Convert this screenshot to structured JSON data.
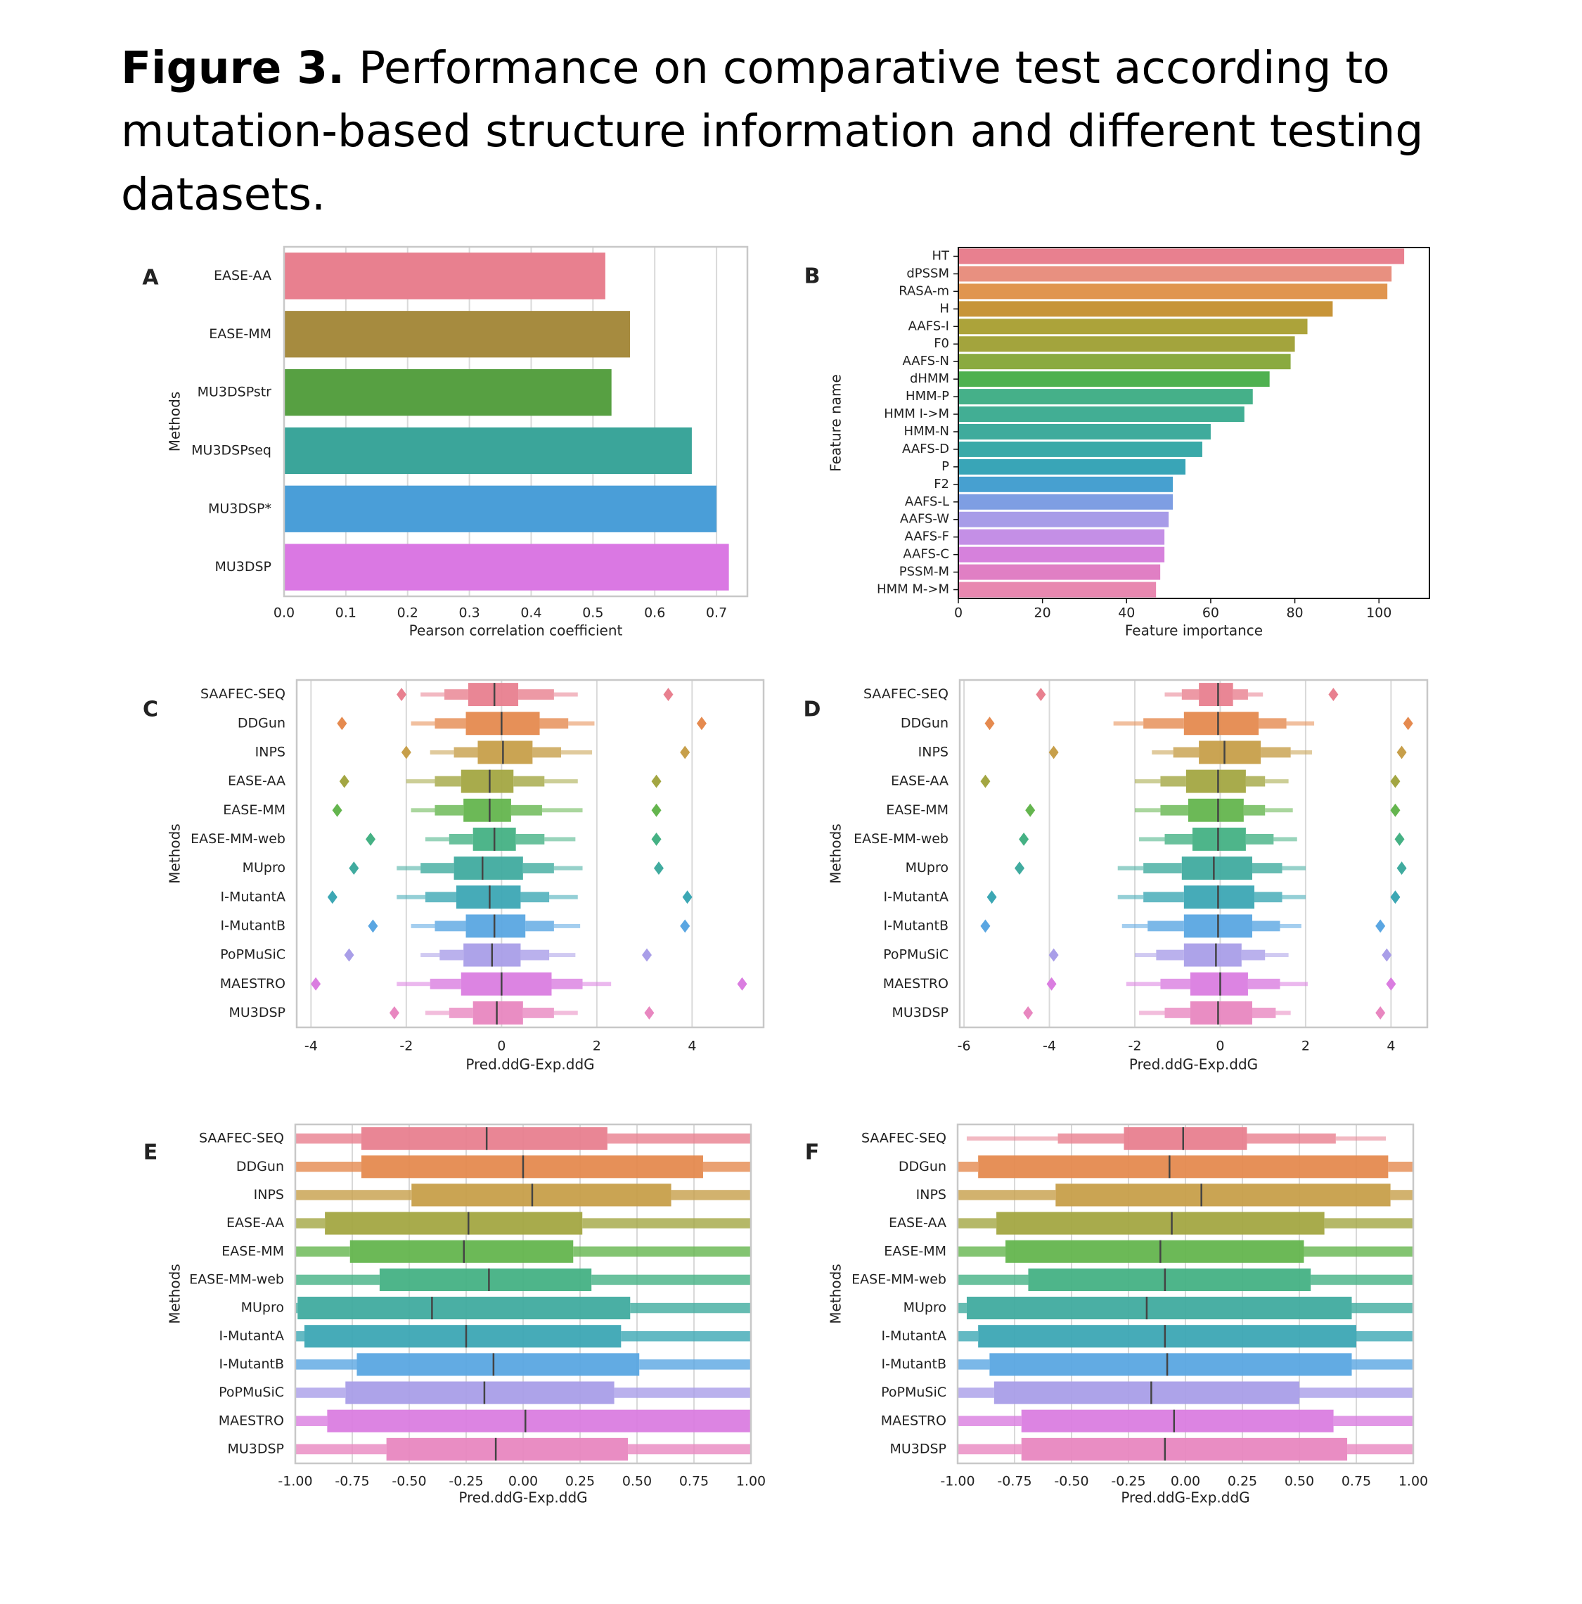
{
  "figure": {
    "label": "Figure 3.",
    "title": "Performance on comparative test according to mutation-based structure information and different testing datasets."
  },
  "chart_data": [
    {
      "panel": "A",
      "type": "bar",
      "orientation": "horizontal",
      "categories": [
        "EASE-AA",
        "EASE-MM",
        "MU3DSPstr",
        "MU3DSPseq",
        "MU3DSP*",
        "MU3DSP"
      ],
      "values": [
        0.52,
        0.56,
        0.53,
        0.66,
        0.7,
        0.72
      ],
      "colors": [
        "#e8808f",
        "#a68b3f",
        "#57a042",
        "#3ba59a",
        "#4a9ed8",
        "#da78e3"
      ],
      "xlabel": "Pearson correlation coefficient",
      "ylabel": "Methods",
      "xlim": [
        0,
        0.75
      ],
      "xticks": [
        "0.0",
        "0.1",
        "0.2",
        "0.3",
        "0.4",
        "0.5",
        "0.6",
        "0.7"
      ],
      "grid": true
    },
    {
      "panel": "B",
      "type": "bar",
      "orientation": "horizontal",
      "categories": [
        "HT",
        "dPSSM",
        "RASA-m",
        "H",
        "AAFS-I",
        "F0",
        "AAFS-N",
        "dHMM",
        "HMM-P",
        "HMM I->M",
        "HMM-N",
        "AAFS-D",
        "P",
        "F2",
        "AAFS-L",
        "AAFS-W",
        "AAFS-F",
        "AAFS-C",
        "PSSM-M",
        "HMM M->M"
      ],
      "values": [
        106,
        103,
        102,
        89,
        83,
        80,
        79,
        74,
        70,
        68,
        60,
        58,
        54,
        51,
        51,
        50,
        49,
        49,
        48,
        47
      ],
      "colors": [
        "#e8808f",
        "#e89080",
        "#e0954f",
        "#c79438",
        "#aca33a",
        "#a3a43d",
        "#8aaa40",
        "#4fb150",
        "#45b089",
        "#42ae94",
        "#3fab9c",
        "#3aa9a8",
        "#39a5b7",
        "#47a0d0",
        "#7e9ee3",
        "#a89ce8",
        "#c48fe6",
        "#d681dc",
        "#e07fc4",
        "#e888b0"
      ],
      "xlabel": "Feature importance",
      "ylabel": "Feature name",
      "xlim": [
        0,
        112
      ],
      "xticks": [
        "0",
        "20",
        "40",
        "60",
        "80",
        "100"
      ],
      "grid": false
    },
    {
      "panel": "C",
      "type": "boxen",
      "orientation": "horizontal",
      "categories": [
        "SAAFEC-SEQ",
        "DDGun",
        "INPS",
        "EASE-AA",
        "EASE-MM",
        "EASE-MM-web",
        "MUpro",
        "I-MutantA",
        "I-MutantB",
        "PoPMuSiC",
        "MAESTRO",
        "MU3DSP"
      ],
      "colors": [
        "#e8808f",
        "#e58a4f",
        "#c79f4a",
        "#a3a642",
        "#64b54e",
        "#45b184",
        "#40ab9f",
        "#3ca7b4",
        "#5aa6e2",
        "#a99ee8",
        "#da7de0",
        "#e887c0"
      ],
      "medians": [
        -0.15,
        0.0,
        0.03,
        -0.25,
        -0.25,
        -0.15,
        -0.4,
        -0.25,
        -0.15,
        -0.2,
        0.0,
        -0.1
      ],
      "q1": [
        -0.7,
        -0.75,
        -0.5,
        -0.85,
        -0.8,
        -0.6,
        -1.0,
        -0.95,
        -0.75,
        -0.8,
        -0.85,
        -0.6
      ],
      "q3": [
        0.35,
        0.8,
        0.65,
        0.25,
        0.2,
        0.3,
        0.45,
        0.4,
        0.5,
        0.4,
        1.05,
        0.45
      ],
      "inner_lo": [
        -1.2,
        -1.4,
        -1.0,
        -1.4,
        -1.4,
        -1.1,
        -1.7,
        -1.6,
        -1.4,
        -1.3,
        -1.5,
        -1.1
      ],
      "inner_hi": [
        1.1,
        1.4,
        1.25,
        0.9,
        0.85,
        0.9,
        1.1,
        1.0,
        1.1,
        1.0,
        1.7,
        1.1
      ],
      "outer_lo": [
        -1.7,
        -1.9,
        -1.5,
        -2.0,
        -1.9,
        -1.6,
        -2.2,
        -2.2,
        -1.9,
        -1.7,
        -2.2,
        -1.6
      ],
      "outer_hi": [
        1.6,
        1.95,
        1.9,
        1.6,
        1.7,
        1.55,
        1.7,
        1.6,
        1.65,
        1.55,
        2.3,
        1.6
      ],
      "fliers_lo": [
        -2.1,
        -3.35,
        -2.0,
        -3.3,
        -3.45,
        -2.75,
        -3.1,
        -3.55,
        -2.7,
        -3.2,
        -3.9,
        -2.25
      ],
      "fliers_hi": [
        3.5,
        4.2,
        3.85,
        3.25,
        3.25,
        3.25,
        3.3,
        3.9,
        3.85,
        3.05,
        5.05,
        3.1
      ],
      "xlabel": "Pred.ddG-Exp.ddG",
      "ylabel": "Methods",
      "xlim": [
        -4.3,
        5.5
      ],
      "xticks": [
        "-4",
        "-2",
        "0",
        "2",
        "4"
      ],
      "grid": true
    },
    {
      "panel": "D",
      "type": "boxen",
      "orientation": "horizontal",
      "categories": [
        "SAAFEC-SEQ",
        "DDGun",
        "INPS",
        "EASE-AA",
        "EASE-MM",
        "EASE-MM-web",
        "MUpro",
        "I-MutantA",
        "I-MutantB",
        "PoPMuSiC",
        "MAESTRO",
        "MU3DSP"
      ],
      "colors": [
        "#e8808f",
        "#e58a4f",
        "#c79f4a",
        "#a3a642",
        "#64b54e",
        "#45b184",
        "#40ab9f",
        "#3ca7b4",
        "#5aa6e2",
        "#a99ee8",
        "#da7de0",
        "#e887c0"
      ],
      "medians": [
        -0.05,
        -0.05,
        0.1,
        -0.05,
        -0.05,
        -0.05,
        -0.15,
        -0.05,
        -0.05,
        -0.1,
        0.0,
        -0.05
      ],
      "q1": [
        -0.5,
        -0.85,
        -0.5,
        -0.8,
        -0.75,
        -0.65,
        -0.9,
        -0.85,
        -0.85,
        -0.85,
        -0.7,
        -0.7
      ],
      "q3": [
        0.3,
        0.9,
        0.95,
        0.6,
        0.55,
        0.6,
        0.75,
        0.8,
        0.75,
        0.5,
        0.65,
        0.75
      ],
      "inner_lo": [
        -0.9,
        -1.8,
        -1.1,
        -1.4,
        -1.4,
        -1.3,
        -1.8,
        -1.8,
        -1.7,
        -1.5,
        -1.4,
        -1.3
      ],
      "inner_hi": [
        0.65,
        1.55,
        1.65,
        1.05,
        1.05,
        1.25,
        1.45,
        1.45,
        1.4,
        1.05,
        1.4,
        1.3
      ],
      "outer_lo": [
        -1.3,
        -2.5,
        -1.6,
        -2.0,
        -2.0,
        -1.9,
        -2.4,
        -2.4,
        -2.3,
        -2.0,
        -2.2,
        -1.9
      ],
      "outer_hi": [
        1.0,
        2.2,
        2.15,
        1.6,
        1.7,
        1.8,
        2.0,
        2.0,
        1.9,
        1.6,
        2.05,
        1.65
      ],
      "fliers_lo": [
        -4.2,
        -5.4,
        -3.9,
        -5.5,
        -4.45,
        -4.6,
        -4.7,
        -5.35,
        -5.5,
        -3.9,
        -3.95,
        -4.5
      ],
      "fliers_hi": [
        2.65,
        4.4,
        4.25,
        4.1,
        4.1,
        4.2,
        4.25,
        4.1,
        3.75,
        3.9,
        4.0,
        3.75
      ],
      "xlabel": "Pred.ddG-Exp.ddG",
      "ylabel": "Methods",
      "xlim": [
        -6.1,
        4.85
      ],
      "xticks": [
        "-6",
        "-4",
        "-2",
        "0",
        "2",
        "4"
      ],
      "grid": true
    },
    {
      "panel": "E",
      "type": "boxen",
      "orientation": "horizontal",
      "categories": [
        "SAAFEC-SEQ",
        "DDGun",
        "INPS",
        "EASE-AA",
        "EASE-MM",
        "EASE-MM-web",
        "MUpro",
        "I-MutantA",
        "I-MutantB",
        "PoPMuSiC",
        "MAESTRO",
        "MU3DSP"
      ],
      "colors": [
        "#e8808f",
        "#e58a4f",
        "#c79f4a",
        "#a3a642",
        "#64b54e",
        "#45b184",
        "#40ab9f",
        "#3ca7b4",
        "#5aa6e2",
        "#a99ee8",
        "#da7de0",
        "#e887c0"
      ],
      "medians": [
        -0.16,
        0.0,
        0.04,
        -0.24,
        -0.26,
        -0.15,
        -0.4,
        -0.25,
        -0.13,
        -0.17,
        0.01,
        -0.12
      ],
      "q1": [
        -0.71,
        -0.71,
        -0.49,
        -0.87,
        -0.76,
        -0.63,
        -0.99,
        -0.96,
        -0.73,
        -0.78,
        -0.86,
        -0.6
      ],
      "q3": [
        0.37,
        0.79,
        0.65,
        0.26,
        0.22,
        0.3,
        0.47,
        0.43,
        0.51,
        0.4,
        1.0,
        0.46
      ],
      "inner_lo": [
        -1.0,
        -1.0,
        -1.0,
        -1.0,
        -1.0,
        -1.0,
        -1.0,
        -1.0,
        -1.0,
        -1.0,
        -1.0,
        -1.0
      ],
      "inner_hi": [
        1.0,
        1.0,
        1.0,
        1.0,
        1.0,
        1.0,
        1.0,
        1.0,
        1.0,
        1.0,
        1.0,
        1.0
      ],
      "outer_lo": [
        -1.0,
        -1.0,
        -0.86,
        -1.0,
        -1.0,
        -1.0,
        -1.0,
        -0.98,
        -1.0,
        -1.0,
        -1.0,
        -0.86
      ],
      "outer_hi": [
        1.0,
        1.0,
        1.0,
        0.88,
        0.87,
        0.9,
        1.0,
        1.0,
        1.0,
        1.0,
        1.0,
        1.0
      ],
      "xlabel": "Pred.ddG-Exp.ddG",
      "ylabel": "Methods",
      "xlim": [
        -1.0,
        1.0
      ],
      "xticks": [
        "-1.00",
        "-0.75",
        "-0.50",
        "-0.25",
        "0.00",
        "0.25",
        "0.50",
        "0.75",
        "1.00"
      ],
      "grid": true
    },
    {
      "panel": "F",
      "type": "boxen",
      "orientation": "horizontal",
      "categories": [
        "SAAFEC-SEQ",
        "DDGun",
        "INPS",
        "EASE-AA",
        "EASE-MM",
        "EASE-MM-web",
        "MUpro",
        "I-MutantA",
        "I-MutantB",
        "PoPMuSiC",
        "MAESTRO",
        "MU3DSP"
      ],
      "colors": [
        "#e8808f",
        "#e58a4f",
        "#c79f4a",
        "#a3a642",
        "#64b54e",
        "#45b184",
        "#40ab9f",
        "#3ca7b4",
        "#5aa6e2",
        "#a99ee8",
        "#da7de0",
        "#e887c0"
      ],
      "medians": [
        -0.01,
        -0.07,
        0.07,
        -0.06,
        -0.11,
        -0.09,
        -0.17,
        -0.09,
        -0.08,
        -0.15,
        -0.05,
        -0.09
      ],
      "q1": [
        -0.27,
        -0.91,
        -0.57,
        -0.83,
        -0.79,
        -0.69,
        -0.96,
        -0.91,
        -0.86,
        -0.84,
        -0.72,
        -0.72
      ],
      "q3": [
        0.27,
        0.89,
        0.9,
        0.61,
        0.52,
        0.55,
        0.73,
        0.75,
        0.73,
        0.5,
        0.65,
        0.71
      ],
      "inner_lo": [
        -0.56,
        -1.0,
        -1.0,
        -1.0,
        -1.0,
        -1.0,
        -1.0,
        -1.0,
        -1.0,
        -1.0,
        -1.0,
        -1.0
      ],
      "inner_hi": [
        0.66,
        1.0,
        1.0,
        1.0,
        1.0,
        1.0,
        1.0,
        1.0,
        1.0,
        1.0,
        1.0,
        1.0
      ],
      "outer_lo": [
        -0.96,
        -1.0,
        -1.0,
        -1.0,
        -1.0,
        -1.0,
        -1.0,
        -1.0,
        -1.0,
        -1.0,
        -1.0,
        -1.0
      ],
      "outer_hi": [
        0.88,
        1.0,
        1.0,
        1.0,
        1.0,
        1.0,
        1.0,
        1.0,
        1.0,
        1.0,
        1.0,
        1.0
      ],
      "xlabel": "Pred.ddG-Exp.ddG",
      "ylabel": "Methods",
      "xlim": [
        -1.0,
        1.0
      ],
      "xticks": [
        "-1.00",
        "-0.75",
        "-0.50",
        "-0.25",
        "0.00",
        "0.25",
        "0.50",
        "0.75",
        "1.00"
      ],
      "grid": true
    }
  ]
}
